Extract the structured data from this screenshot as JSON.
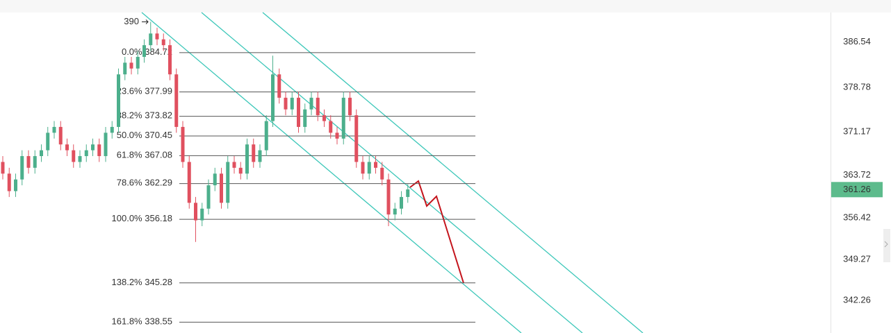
{
  "chart_data": {
    "type": "candlestick",
    "open": [
      366,
      364,
      361,
      363,
      367,
      365,
      367,
      368,
      371,
      372,
      369,
      368,
      366,
      367,
      368,
      369,
      367,
      371,
      372,
      381,
      383,
      382,
      384,
      386,
      388,
      387,
      386,
      381,
      372,
      366,
      359,
      356,
      358,
      362,
      364,
      359,
      366,
      365,
      364,
      369,
      366,
      368,
      373,
      381,
      377,
      375,
      377,
      372,
      375,
      377,
      374,
      373,
      371,
      370,
      377,
      374,
      366,
      364,
      366,
      365,
      363,
      357,
      358,
      360
    ],
    "high": [
      367,
      365,
      364,
      368,
      368,
      368,
      369,
      372,
      373,
      373,
      370,
      369,
      368,
      369,
      370,
      370,
      372,
      373,
      382,
      384,
      384,
      385,
      387,
      390,
      389,
      388,
      387,
      382,
      373,
      367,
      360,
      359,
      363,
      365,
      365,
      367,
      367,
      366,
      370,
      370,
      369,
      374,
      384.2,
      382,
      378,
      378,
      378,
      376,
      378,
      378,
      375,
      374,
      372,
      378,
      378,
      375,
      367,
      367,
      367,
      366,
      364,
      359,
      361,
      362.2
    ],
    "low": [
      363,
      360,
      360,
      362,
      364,
      364,
      366,
      367,
      370,
      368,
      367,
      365,
      365,
      366,
      367,
      366,
      366,
      370,
      371,
      380,
      381,
      381,
      383,
      385,
      386,
      385,
      380,
      371,
      365,
      358,
      352.3,
      355,
      357,
      361,
      358,
      358,
      364,
      363,
      363,
      365,
      365,
      367,
      372,
      376,
      374,
      374,
      371,
      371,
      374,
      373,
      372,
      370,
      369,
      369,
      373,
      365,
      363,
      363,
      364,
      362,
      355,
      356,
      357,
      359
    ],
    "close": [
      364,
      361,
      363,
      367,
      365,
      367,
      368,
      371,
      372,
      369,
      368,
      366,
      367,
      368,
      369,
      367,
      371,
      372,
      381,
      383,
      382,
      384,
      386,
      388,
      387,
      386,
      381,
      372,
      366,
      359,
      356,
      358,
      362,
      364,
      359,
      366,
      365,
      364,
      369,
      366,
      368,
      373,
      381,
      377,
      375,
      377,
      372,
      375,
      377,
      374,
      373,
      371,
      370,
      377,
      374,
      366,
      364,
      366,
      365,
      363,
      357,
      358,
      360,
      361.3
    ],
    "up_color": "#4caf8c",
    "down_color": "#e0505f",
    "ylim": [
      336.7,
      391.6
    ],
    "yticks": [
      386.54,
      378.78,
      371.17,
      363.72,
      356.42,
      349.27,
      342.26
    ],
    "high_marker": 390,
    "last_price": 361.26,
    "last_price_color": "#5dbb8c",
    "fib_color": "#555555",
    "fib_levels": [
      {
        "label": "0.0%",
        "value": 384.72
      },
      {
        "label": "23.6%",
        "value": 377.99
      },
      {
        "label": "38.2%",
        "value": 373.82
      },
      {
        "label": "50.0%",
        "value": 370.45
      },
      {
        "label": "61.8%",
        "value": 367.08
      },
      {
        "label": "78.6%",
        "value": 362.29
      },
      {
        "label": "100.0%",
        "value": 356.18
      },
      {
        "label": "138.2%",
        "value": 345.28
      },
      {
        "label": "161.8%",
        "value": 338.55
      }
    ]
  }
}
